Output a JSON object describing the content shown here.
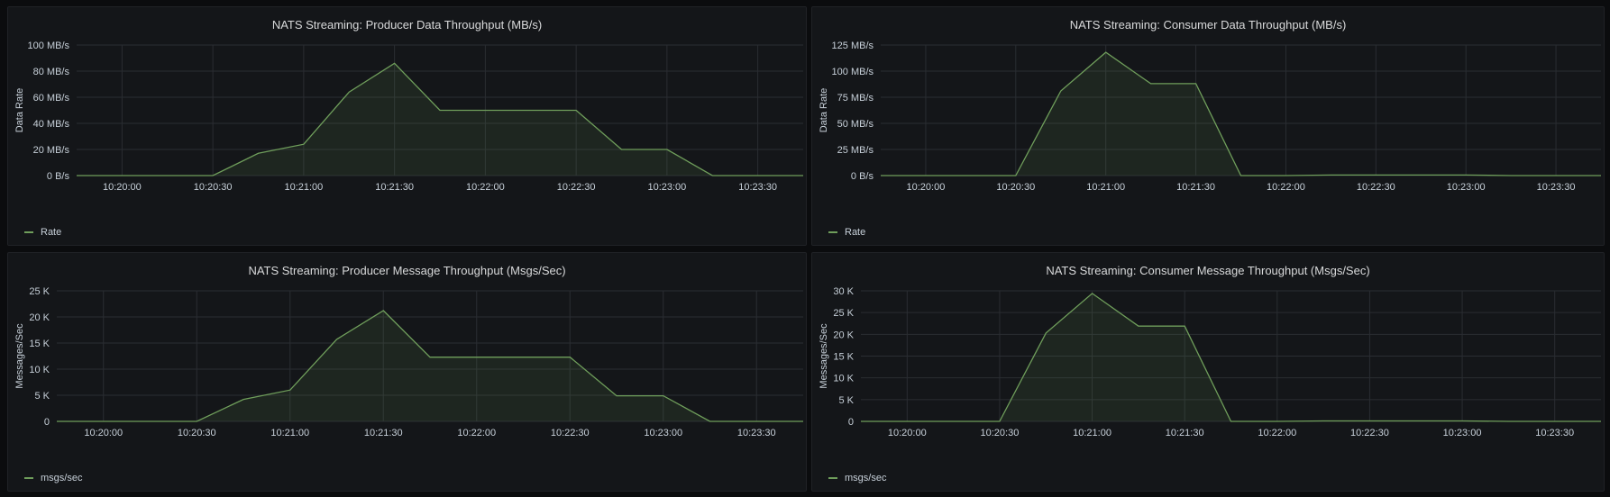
{
  "colors": {
    "series": "#6f9e5b"
  },
  "chart_data": [
    {
      "type": "area",
      "title": "NATS Streaming: Producer Data Throughput (MB/s)",
      "ylabel": "Data Rate",
      "legend": "Rate",
      "ylim": [
        0,
        100
      ],
      "yticks": [
        0,
        20,
        40,
        60,
        80,
        100
      ],
      "ytick_labels": [
        "0 B/s",
        "20 MB/s",
        "40 MB/s",
        "60 MB/s",
        "80 MB/s",
        "100 MB/s"
      ],
      "xlim": [
        "10:19:45",
        "10:23:45"
      ],
      "xticks": [
        "10:20:00",
        "10:20:30",
        "10:21:00",
        "10:21:30",
        "10:22:00",
        "10:22:30",
        "10:23:00",
        "10:23:30"
      ],
      "x": [
        "10:19:45",
        "10:20:00",
        "10:20:15",
        "10:20:30",
        "10:20:45",
        "10:21:00",
        "10:21:15",
        "10:21:30",
        "10:21:45",
        "10:22:00",
        "10:22:15",
        "10:22:30",
        "10:22:45",
        "10:23:00",
        "10:23:15",
        "10:23:30",
        "10:23:45"
      ],
      "values": [
        0,
        0,
        0,
        0,
        17,
        24,
        64,
        86,
        50,
        50,
        50,
        50,
        20,
        20,
        0,
        0,
        0
      ]
    },
    {
      "type": "area",
      "title": "NATS Streaming: Consumer Data Throughput (MB/s)",
      "ylabel": "Data Rate",
      "legend": "Rate",
      "ylim": [
        0,
        125
      ],
      "yticks": [
        0,
        25,
        50,
        75,
        100,
        125
      ],
      "ytick_labels": [
        "0 B/s",
        "25 MB/s",
        "50 MB/s",
        "75 MB/s",
        "100 MB/s",
        "125 MB/s"
      ],
      "xlim": [
        "10:19:45",
        "10:23:45"
      ],
      "xticks": [
        "10:20:00",
        "10:20:30",
        "10:21:00",
        "10:21:30",
        "10:22:00",
        "10:22:30",
        "10:23:00",
        "10:23:30"
      ],
      "x": [
        "10:19:45",
        "10:20:00",
        "10:20:15",
        "10:20:30",
        "10:20:45",
        "10:21:00",
        "10:21:15",
        "10:21:30",
        "10:21:45",
        "10:22:00",
        "10:22:15",
        "10:22:30",
        "10:22:45",
        "10:23:00",
        "10:23:15",
        "10:23:30",
        "10:23:45"
      ],
      "values": [
        0,
        0,
        0,
        0,
        81,
        118,
        88,
        88,
        0,
        0,
        0.5,
        0.5,
        0.5,
        0.5,
        0,
        0,
        0
      ]
    },
    {
      "type": "area",
      "title": "NATS Streaming: Producer Message Throughput (Msgs/Sec)",
      "ylabel": "Messages/Sec",
      "legend": "msgs/sec",
      "ylim": [
        0,
        25000
      ],
      "yticks": [
        0,
        5000,
        10000,
        15000,
        20000,
        25000
      ],
      "ytick_labels": [
        "0",
        "5 K",
        "10 K",
        "15 K",
        "20 K",
        "25 K"
      ],
      "xlim": [
        "10:19:45",
        "10:23:45"
      ],
      "xticks": [
        "10:20:00",
        "10:20:30",
        "10:21:00",
        "10:21:30",
        "10:22:00",
        "10:22:30",
        "10:23:00",
        "10:23:30"
      ],
      "x": [
        "10:19:45",
        "10:20:00",
        "10:20:15",
        "10:20:30",
        "10:20:45",
        "10:21:00",
        "10:21:15",
        "10:21:30",
        "10:21:45",
        "10:22:00",
        "10:22:15",
        "10:22:30",
        "10:22:45",
        "10:23:00",
        "10:23:15",
        "10:23:30",
        "10:23:45"
      ],
      "values": [
        0,
        0,
        0,
        0,
        4200,
        6000,
        15700,
        21200,
        12300,
        12300,
        12300,
        12300,
        4900,
        4900,
        0,
        0,
        0
      ]
    },
    {
      "type": "area",
      "title": "NATS Streaming: Consumer Message Throughput (Msgs/Sec)",
      "ylabel": "Messages/Sec",
      "legend": "msgs/sec",
      "ylim": [
        0,
        30000
      ],
      "yticks": [
        0,
        5000,
        10000,
        15000,
        20000,
        25000,
        30000
      ],
      "ytick_labels": [
        "0",
        "5 K",
        "10 K",
        "15 K",
        "20 K",
        "25 K",
        "30 K"
      ],
      "xlim": [
        "10:19:45",
        "10:23:45"
      ],
      "xticks": [
        "10:20:00",
        "10:20:30",
        "10:21:00",
        "10:21:30",
        "10:22:00",
        "10:22:30",
        "10:23:00",
        "10:23:30"
      ],
      "x": [
        "10:19:45",
        "10:20:00",
        "10:20:15",
        "10:20:30",
        "10:20:45",
        "10:21:00",
        "10:21:15",
        "10:21:30",
        "10:21:45",
        "10:22:00",
        "10:22:15",
        "10:22:30",
        "10:22:45",
        "10:23:00",
        "10:23:15",
        "10:23:30",
        "10:23:45"
      ],
      "values": [
        0,
        0,
        0,
        0,
        20300,
        29400,
        21900,
        21900,
        0,
        0,
        100,
        100,
        100,
        100,
        0,
        0,
        0
      ]
    }
  ]
}
